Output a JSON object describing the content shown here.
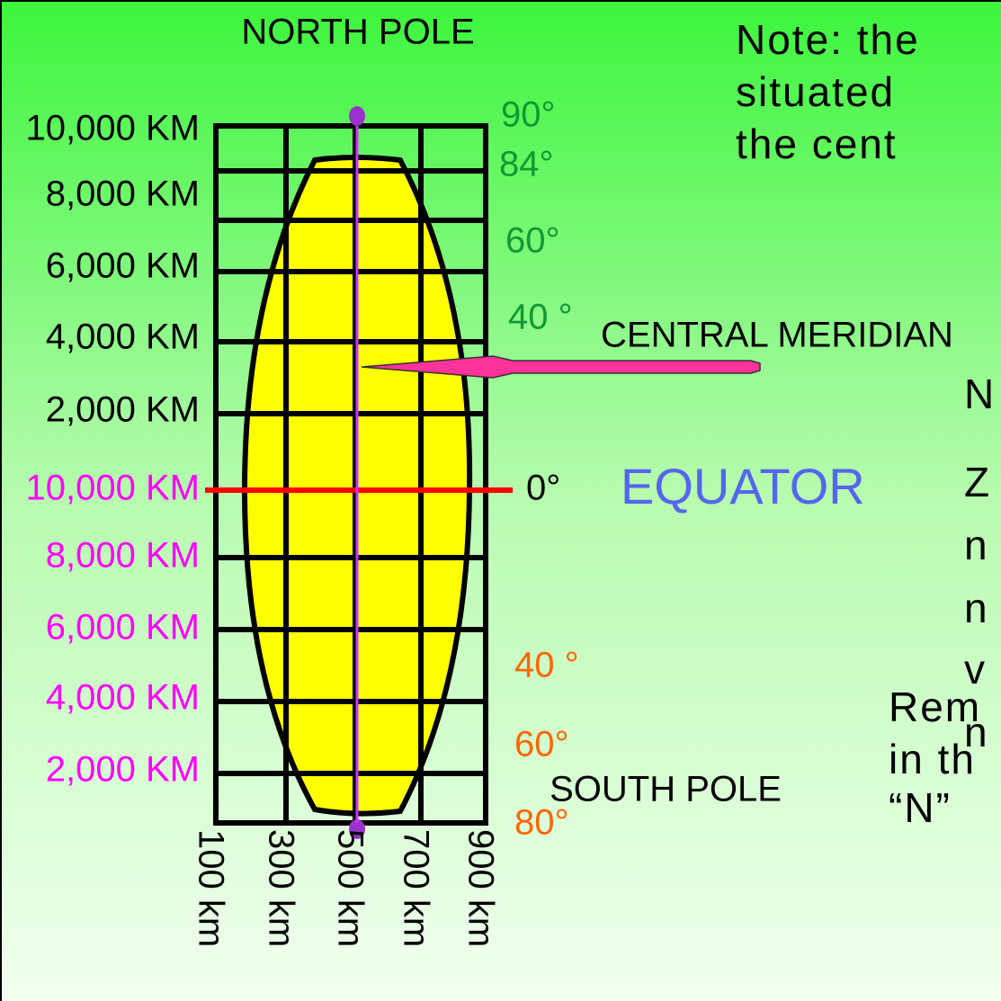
{
  "diagram": {
    "north_pole": "NORTH POLE",
    "south_pole": "SOUTH POLE",
    "north_distances": [
      "10,000 KM",
      "8,000 KM",
      "6,000 KM",
      "4,000 KM",
      "2,000 KM"
    ],
    "south_distances": [
      "10,000 KM",
      "8,000 KM",
      "6,000 KM",
      "4,000 KM",
      "2,000 KM"
    ],
    "north_latitudes": [
      "90°",
      "84°",
      "60°",
      "40 °"
    ],
    "equator_latitude": "0°",
    "south_latitudes": [
      "40 °",
      "60°",
      "80°"
    ],
    "central_meridian": "CENTRAL MERIDIAN",
    "equator": "EQUATOR",
    "eastings": [
      "100 km",
      "300 km",
      "500 km",
      "700 km",
      "900 km"
    ]
  },
  "note": {
    "lines": [
      "Note: the",
      "situated",
      "the cent"
    ]
  },
  "side_text": {
    "lines": [
      "N",
      "Z",
      "n",
      "n",
      "v",
      "n"
    ]
  },
  "remark": {
    "lines": [
      "Rem",
      "in th",
      "“N”"
    ]
  }
}
